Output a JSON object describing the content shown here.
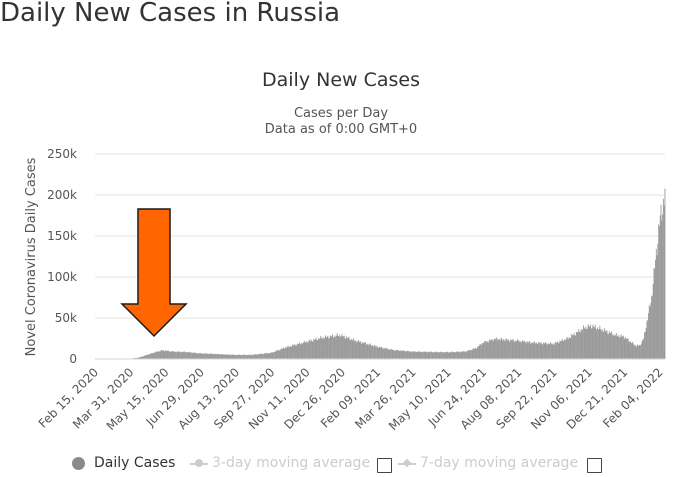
{
  "page": {
    "heading": "Daily New Cases in Russia"
  },
  "legend": {
    "daily_cases": "Daily Cases",
    "three_day": "3-day moving average",
    "seven_day": "7-day moving average"
  },
  "colors": {
    "bars": "#999999",
    "arrow": "#ff6600",
    "arrow_outline": "#1a1a1a",
    "grid": "#e6e6e6"
  },
  "chart_data": {
    "type": "bar",
    "title": "Daily New Cases",
    "subtitle": [
      "Cases per Day",
      "Data as of 0:00 GMT+0"
    ],
    "xlabel": "",
    "ylabel": "Novel Coronavirus Daily Cases",
    "ylim": [
      0,
      250000
    ],
    "yticks": [
      0,
      50000,
      100000,
      150000,
      200000,
      250000
    ],
    "ytick_labels": [
      "0",
      "50k",
      "100k",
      "150k",
      "200k",
      "250k"
    ],
    "x_start": "2020-02-15",
    "x_end": "2022-02-11",
    "xtick_labels": [
      "Feb 15, 2020",
      "Mar 31, 2020",
      "May 15, 2020",
      "Jun 29, 2020",
      "Aug 13, 2020",
      "Sep 27, 2020",
      "Nov 11, 2020",
      "Dec 26, 2020",
      "Feb 09, 2021",
      "Mar 26, 2021",
      "May 10, 2021",
      "Jun 24, 2021",
      "Aug 08, 2021",
      "Sep 22, 2021",
      "Nov 06, 2021",
      "Dec 21, 2021",
      "Feb 04, 2022"
    ],
    "series": [
      {
        "name": "Daily Cases",
        "x": [
          "2020-02-15",
          "2020-03-15",
          "2020-03-31",
          "2020-04-10",
          "2020-04-20",
          "2020-05-01",
          "2020-05-11",
          "2020-05-25",
          "2020-06-10",
          "2020-06-29",
          "2020-07-15",
          "2020-08-01",
          "2020-08-13",
          "2020-09-01",
          "2020-09-27",
          "2020-10-15",
          "2020-11-11",
          "2020-12-01",
          "2020-12-24",
          "2021-01-10",
          "2021-02-09",
          "2021-03-01",
          "2021-03-26",
          "2021-04-20",
          "2021-05-10",
          "2021-06-01",
          "2021-06-15",
          "2021-06-24",
          "2021-07-10",
          "2021-08-08",
          "2021-08-25",
          "2021-09-22",
          "2021-10-10",
          "2021-11-01",
          "2021-11-10",
          "2021-11-25",
          "2021-12-10",
          "2021-12-21",
          "2022-01-05",
          "2022-01-10",
          "2022-01-15",
          "2022-01-20",
          "2022-01-25",
          "2022-01-30",
          "2022-02-04",
          "2022-02-08",
          "2022-02-11"
        ],
        "values": [
          0,
          100,
          500,
          1500,
          4500,
          8000,
          10500,
          9000,
          8500,
          6800,
          6200,
          5400,
          5000,
          5000,
          7500,
          14000,
          21000,
          26000,
          29000,
          23000,
          15000,
          11000,
          9000,
          8500,
          8300,
          9000,
          13000,
          20000,
          24500,
          22000,
          20000,
          18500,
          25000,
          38500,
          40000,
          35000,
          29000,
          27000,
          16000,
          16500,
          25000,
          50000,
          75000,
          120000,
          165000,
          185000,
          203000
        ]
      }
    ]
  }
}
